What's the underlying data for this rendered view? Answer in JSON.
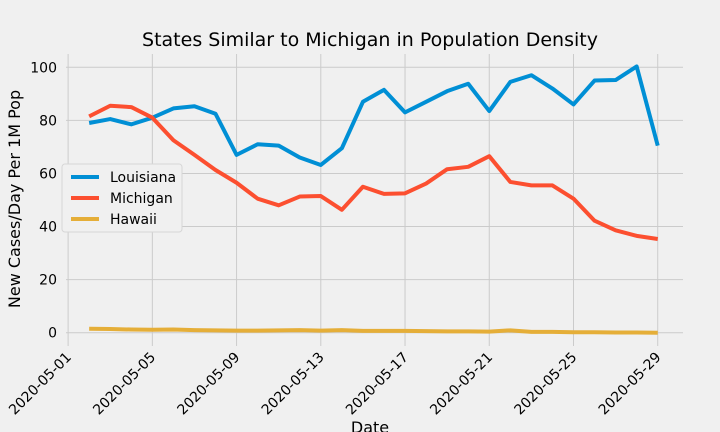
{
  "chart_data": {
    "type": "line",
    "title": "States Similar to Michigan in Population Density",
    "xlabel": "Date",
    "ylabel": "New Cases/Day Per 1M Pop",
    "x_start": "2020-05-02",
    "x": [
      "2020-05-02",
      "2020-05-03",
      "2020-05-04",
      "2020-05-05",
      "2020-05-06",
      "2020-05-07",
      "2020-05-08",
      "2020-05-09",
      "2020-05-10",
      "2020-05-11",
      "2020-05-12",
      "2020-05-13",
      "2020-05-14",
      "2020-05-15",
      "2020-05-16",
      "2020-05-17",
      "2020-05-18",
      "2020-05-19",
      "2020-05-20",
      "2020-05-21",
      "2020-05-22",
      "2020-05-23",
      "2020-05-24",
      "2020-05-25",
      "2020-05-26",
      "2020-05-27",
      "2020-05-28",
      "2020-05-29"
    ],
    "xticks": [
      "2020-05-01",
      "2020-05-05",
      "2020-05-09",
      "2020-05-13",
      "2020-05-17",
      "2020-05-21",
      "2020-05-25",
      "2020-05-29"
    ],
    "yticks": [
      0,
      20,
      40,
      60,
      80,
      100
    ],
    "xlim": [
      "2020-04-30.9",
      "2020-05-30.2"
    ],
    "ylim": [
      -5,
      105
    ],
    "grid": true,
    "legend_position": "center-left",
    "series": [
      {
        "name": "Louisiana",
        "color": "#008fd5",
        "values": [
          79,
          80.5,
          78.5,
          81,
          84.5,
          85.3,
          82.5,
          67,
          71,
          70.5,
          66,
          63.2,
          69.5,
          87,
          91.5,
          83,
          87,
          91,
          93.8,
          83.5,
          94.5,
          97,
          92,
          86,
          95,
          95.2,
          100.3,
          70.5
        ]
      },
      {
        "name": "Michigan",
        "color": "#fc4f30",
        "values": [
          81.5,
          85.5,
          85,
          81,
          72.5,
          67,
          61.3,
          56.5,
          50.5,
          48,
          51.3,
          51.5,
          46.3,
          55,
          52.3,
          52.5,
          56.2,
          61.6,
          62.5,
          66.5,
          56.8,
          55.5,
          55.5,
          50.5,
          42.2,
          38.6,
          36.5,
          35.3
        ]
      },
      {
        "name": "Hawaii",
        "color": "#e5ae38",
        "values": [
          1.5,
          1.4,
          1.2,
          1.1,
          1.2,
          1.0,
          0.9,
          0.8,
          0.8,
          0.9,
          1.0,
          0.8,
          1.0,
          0.7,
          0.7,
          0.7,
          0.6,
          0.5,
          0.5,
          0.4,
          0.9,
          0.3,
          0.3,
          0.2,
          0.2,
          0.1,
          0.1,
          0.0
        ]
      }
    ]
  }
}
